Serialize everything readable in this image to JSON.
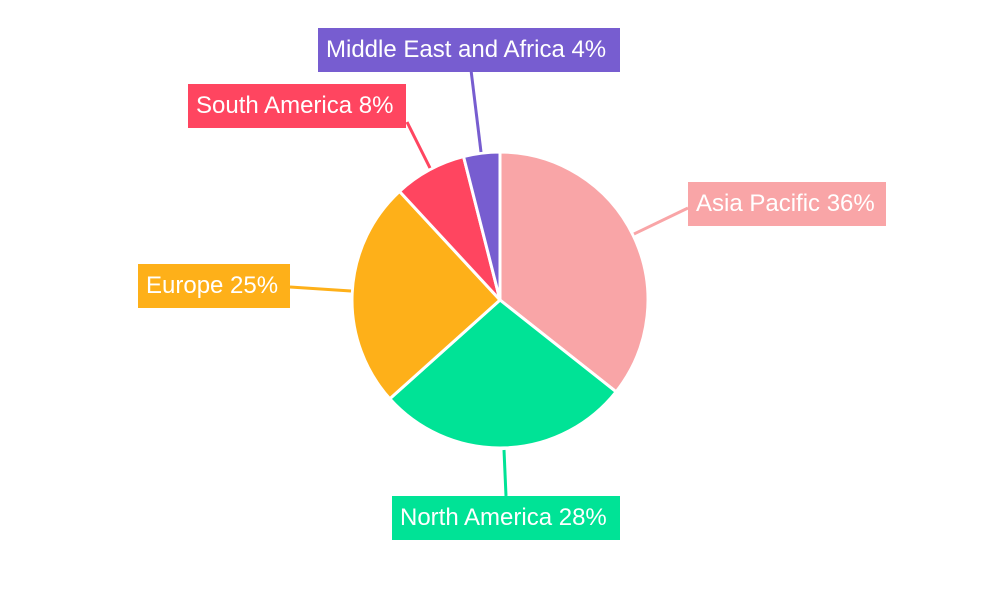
{
  "chart_data": {
    "type": "pie",
    "categories": [
      "Asia Pacific",
      "North America",
      "Europe",
      "South America",
      "Middle East and Africa"
    ],
    "values": [
      36,
      28,
      25,
      8,
      4
    ],
    "data_labels": [
      "Asia Pacific 36%",
      "North America 28%",
      "Europe 25%",
      "South America 8%",
      "Middle East and Africa 4%"
    ],
    "colors": [
      "#f9a5a7",
      "#00e396",
      "#feb019",
      "#ff4560",
      "#775dd0"
    ],
    "start_angle": "top, clockwise",
    "legend": "none"
  }
}
